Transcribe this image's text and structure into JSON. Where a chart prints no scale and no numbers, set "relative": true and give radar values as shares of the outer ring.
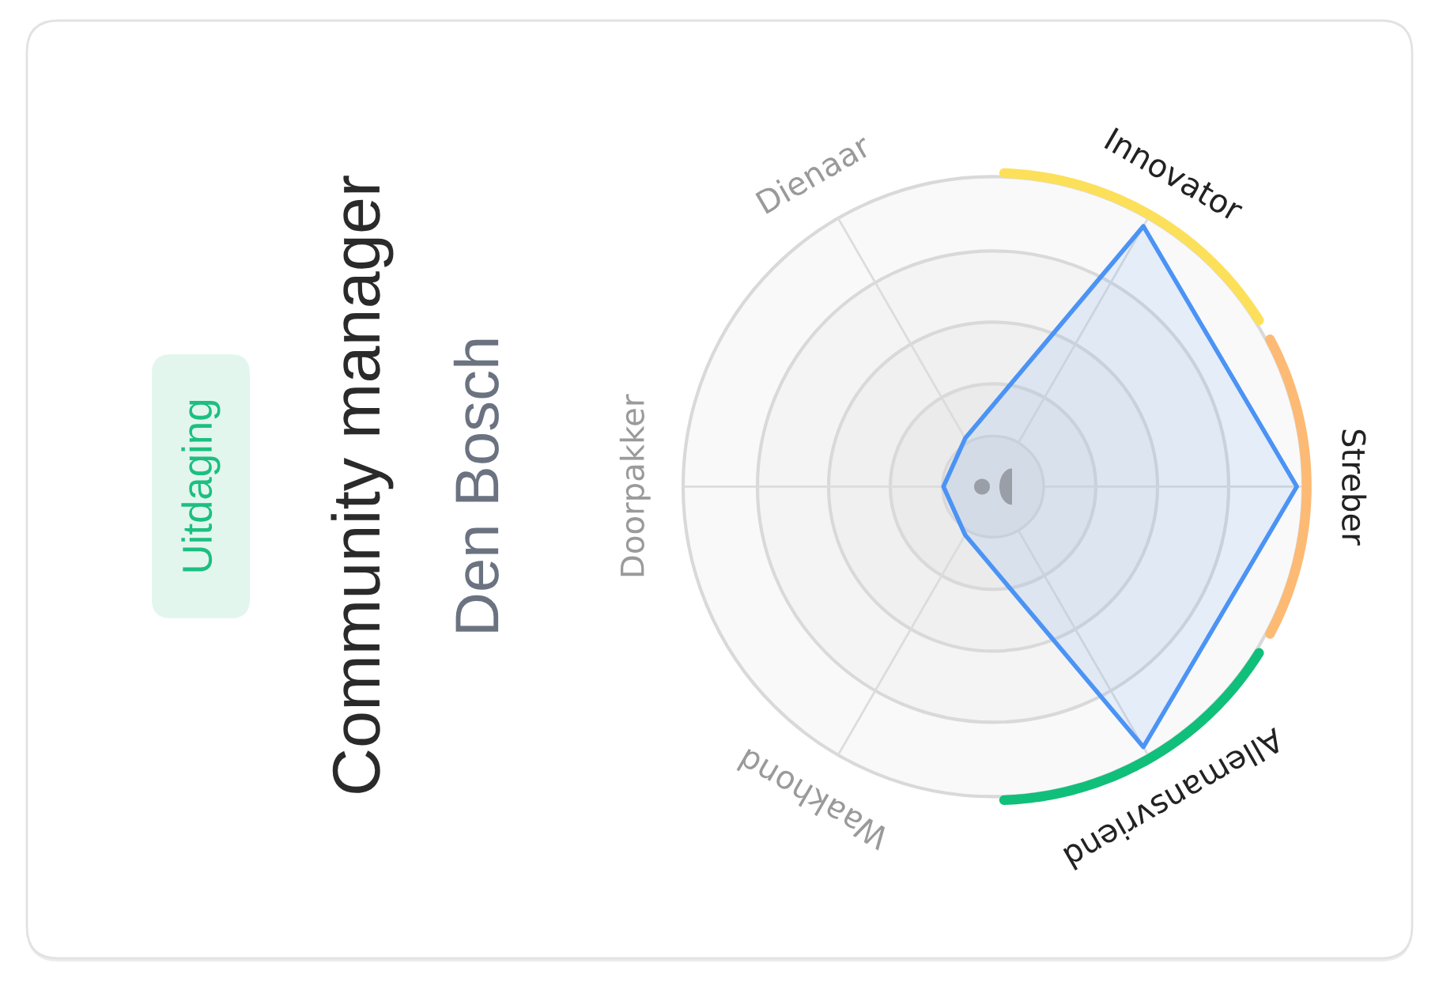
{
  "chart_data": {
    "type": "radar",
    "title": "Community manager",
    "subtitle": "Den Bosch",
    "annotations": [
      "Uitdaging"
    ],
    "categories": [
      "Innovator",
      "Streber",
      "Allemansvriend",
      "Waakhond",
      "Doorpakker",
      "Dienaar"
    ],
    "series": [
      {
        "color": "#4b93f5",
        "values": [
          0.97,
          0.98,
          0.97,
          0.18,
          0.16,
          0.18
        ]
      }
    ],
    "colors": [
      "#fde05a",
      "#fdba74",
      "#10bf7a",
      null,
      null,
      null
    ],
    "relative": true,
    "grid": true
  }
}
